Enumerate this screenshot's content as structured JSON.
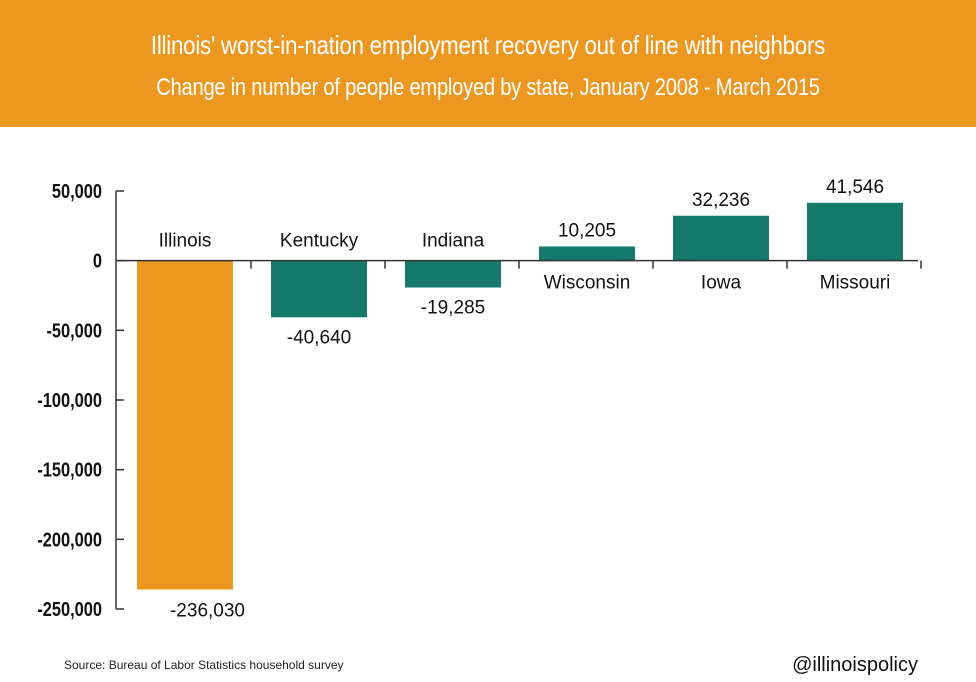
{
  "header": {
    "title": "Illinois' worst-in-nation employment recovery out of line with neighbors",
    "subtitle": "Change in number of people employed by state, January 2008 - March 2015"
  },
  "footer": {
    "source": "Source: Bureau of Labor Statistics household survey",
    "handle": "@illinoispolicy"
  },
  "colors": {
    "header_bg": "#ec971f",
    "highlight_bar": "#ec971f",
    "other_bars": "#157a6b",
    "axis": "#333333"
  },
  "chart_data": {
    "type": "bar",
    "title": "Illinois' worst-in-nation employment recovery out of line with neighbors",
    "subtitle": "Change in number of people employed by state, January 2008 - March 2015",
    "categories": [
      "Illinois",
      "Kentucky",
      "Indiana",
      "Wisconsin",
      "Iowa",
      "Missouri"
    ],
    "values": [
      -236030,
      -40640,
      -19285,
      10205,
      32236,
      41546
    ],
    "value_labels": [
      "-236,030",
      "-40,640",
      "-19,285",
      "10,205",
      "32,236",
      "41,546"
    ],
    "highlight": "Illinois",
    "ylim": [
      -250000,
      50000
    ],
    "yticks": [
      50000,
      0,
      -50000,
      -100000,
      -150000,
      -200000,
      -250000
    ],
    "ytick_labels": [
      "50,000",
      "0",
      "-50,000",
      "-100,000",
      "-150,000",
      "-200,000",
      "-250,000"
    ],
    "xlabel": "",
    "ylabel": "",
    "grid": false,
    "legend": "none"
  }
}
